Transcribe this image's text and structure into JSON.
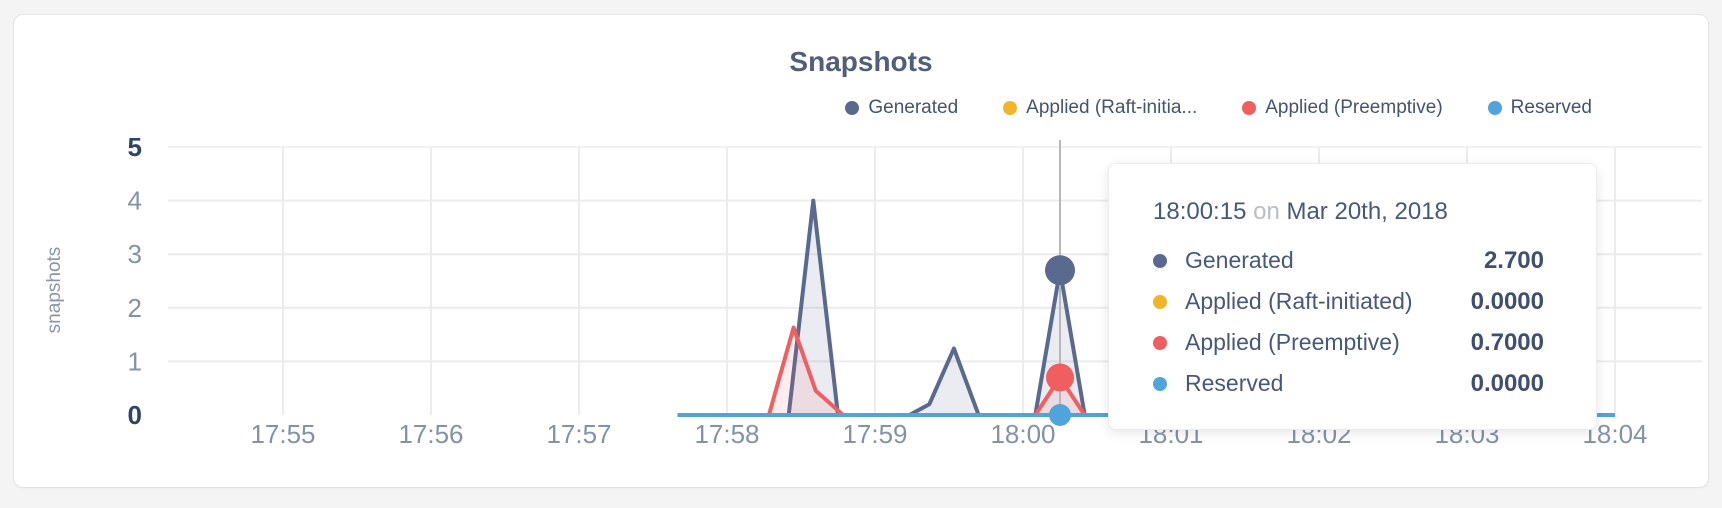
{
  "page": {
    "background": "#f4f4f5",
    "card_background": "#ffffff",
    "card_border": "#e4e4e7"
  },
  "chart": {
    "title": "Snapshots",
    "ylabel": "snapshots",
    "colors": {
      "generated": "#5a6a8f",
      "applied_raft": "#f0b528",
      "applied_preemptive": "#ef5f62",
      "reserved": "#4fa5d9",
      "grid": "#ececec",
      "crosshair": "#b8b8b8",
      "tick_text": "#8492a9",
      "tick_text_bold": "#2f4468"
    },
    "legend": [
      {
        "label": "Generated",
        "color": "#5a6a8f"
      },
      {
        "label": "Applied (Raft-initia...",
        "color": "#f0b528"
      },
      {
        "label": "Applied (Preemptive)",
        "color": "#ef5f62"
      },
      {
        "label": "Reserved",
        "color": "#4fa5d9"
      }
    ]
  },
  "chart_data": {
    "type": "area",
    "title": "Snapshots",
    "xlabel": "",
    "ylabel": "snapshots",
    "x_ticks": [
      "17:55",
      "17:56",
      "17:57",
      "17:58",
      "17:59",
      "18:00",
      "18:01",
      "18:02",
      "18:03",
      "18:04"
    ],
    "y_ticks": [
      0,
      1,
      2,
      3,
      4,
      5
    ],
    "ylim": [
      0,
      5
    ],
    "xlim": [
      "17:54:15",
      "18:04:35"
    ],
    "grid": true,
    "legend_position": "top-right",
    "series": [
      {
        "name": "Generated",
        "color": "#5a6a8f",
        "fill_opacity": 0.13,
        "points": [
          [
            "17:57:40",
            0
          ],
          [
            "17:58:25",
            0
          ],
          [
            "17:58:35",
            4.0
          ],
          [
            "17:58:45",
            0
          ],
          [
            "17:59:14",
            0
          ],
          [
            "17:59:22",
            0.2
          ],
          [
            "17:59:32",
            1.24
          ],
          [
            "17:59:42",
            0
          ],
          [
            "18:00:05",
            0
          ],
          [
            "18:00:15",
            2.7
          ],
          [
            "18:00:25",
            0
          ],
          [
            "18:04:00",
            0
          ]
        ]
      },
      {
        "name": "Applied (Raft-initiated)",
        "color": "#f0b528",
        "fill_opacity": 0,
        "points": [
          [
            "17:57:40",
            0
          ],
          [
            "18:04:00",
            0
          ]
        ]
      },
      {
        "name": "Applied (Preemptive)",
        "color": "#ef5f62",
        "fill_opacity": 0.11,
        "points": [
          [
            "17:57:40",
            0
          ],
          [
            "17:58:17",
            0
          ],
          [
            "17:58:27",
            1.63
          ],
          [
            "17:58:36",
            0.45
          ],
          [
            "17:58:41",
            0.25
          ],
          [
            "17:58:47",
            0
          ],
          [
            "18:00:05",
            0
          ],
          [
            "18:00:15",
            0.7
          ],
          [
            "18:00:25",
            0
          ],
          [
            "18:04:00",
            0
          ]
        ]
      },
      {
        "name": "Reserved",
        "color": "#4fa5d9",
        "fill_opacity": 0,
        "points": [
          [
            "17:57:40",
            0
          ],
          [
            "18:04:00",
            0
          ]
        ]
      }
    ],
    "hover": {
      "time": "18:00:15",
      "markers": [
        {
          "series": "Generated",
          "value": 2.7,
          "radius": 15
        },
        {
          "series": "Applied (Preemptive)",
          "value": 0.7,
          "radius": 14
        },
        {
          "series": "Reserved",
          "value": 0,
          "radius": 11
        }
      ]
    }
  },
  "tooltip": {
    "time": "18:00:15",
    "conj": "on",
    "date": "Mar 20th, 2018",
    "rows": [
      {
        "label": "Generated",
        "value": "2.700",
        "color": "#5a6a8f"
      },
      {
        "label": "Applied (Raft-initiated)",
        "value": "0.0000",
        "color": "#f0b528"
      },
      {
        "label": "Applied (Preemptive)",
        "value": "0.7000",
        "color": "#ef5f62"
      },
      {
        "label": "Reserved",
        "value": "0.0000",
        "color": "#4fa5d9"
      }
    ]
  }
}
